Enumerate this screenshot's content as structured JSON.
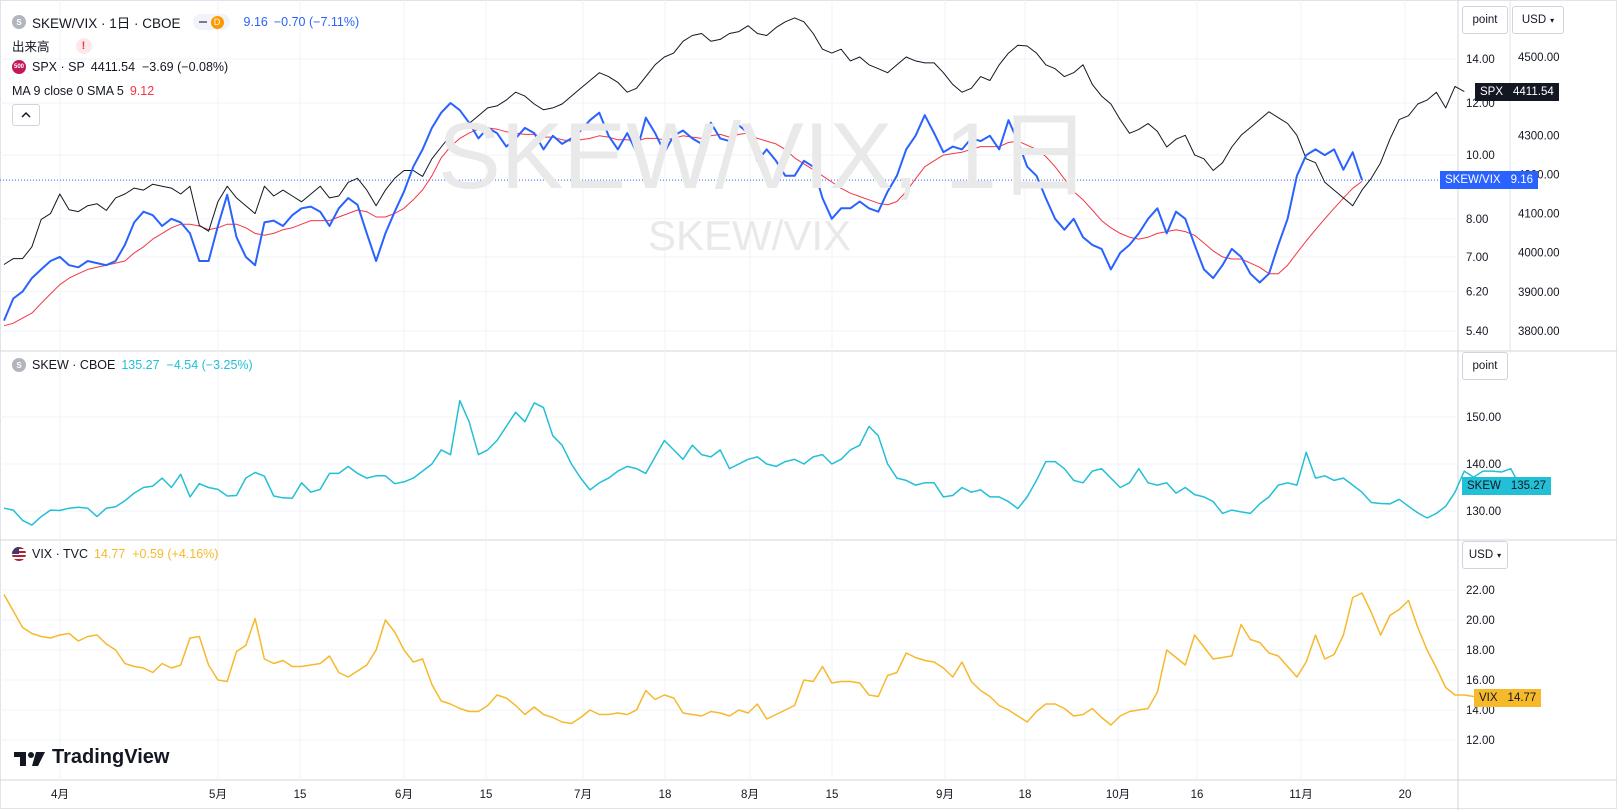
{
  "main_pane": {
    "symbol_title": "SKEW/VIX · 1日 · CBOE",
    "symbol_icon": "S",
    "delay_badge": "D",
    "last": "9.16",
    "change": "−0.70 (−7.11%)",
    "volume_label": "出来高",
    "warning": "!",
    "spx": {
      "icon": "500",
      "name": "SPX · SP",
      "values": "4411.54  −3.69 (−0.08%)"
    },
    "ma": {
      "name": "MA 9 close 0 SMA 5",
      "value": "9.12"
    },
    "collapse_icon": "chevron-up-icon",
    "watermark_big": "SKEW/VIX, 1日",
    "watermark_small": "SKEW/VIX",
    "scale_mode": "point",
    "currency": "USD"
  },
  "skew_pane": {
    "icon": "S",
    "title": "SKEW · CBOE",
    "values": "135.27  −4.54 (−3.25%)",
    "scale_mode": "point"
  },
  "vix_pane": {
    "title": "VIX · TVC",
    "values": "14.77  +0.59 (+4.16%)",
    "currency": "USD"
  },
  "branding": "TradingView",
  "colors": {
    "skew_vix": "#2962ff",
    "spx": "#131722",
    "ma": "#f23645",
    "skew": "#22c0d6",
    "vix": "#f6b92b"
  },
  "x_axis_labels": [
    "4月",
    "5月",
    "15",
    "6月",
    "15",
    "7月",
    "18",
    "8月",
    "15",
    "9月",
    "18",
    "10月",
    "16",
    "11月",
    "20"
  ],
  "chart_data": [
    {
      "type": "line",
      "title": "SKEW/VIX · 1日 · CBOE",
      "y_axis_left_ticks": [
        "14.00",
        "12.00",
        "10.00",
        "8.00",
        "7.00",
        "6.20",
        "5.40"
      ],
      "y_axis_right_ticks": [
        "4500.00",
        "4400.00",
        "4300.00",
        "4200.00",
        "4100.00",
        "4000.00",
        "3900.00",
        "3800.00"
      ],
      "y_scale": "log",
      "series": [
        {
          "name": "SKEW/VIX",
          "color": "#2962ff",
          "last_label": "9.16",
          "values": [
            5.6,
            6.05,
            6.2,
            6.5,
            6.7,
            6.9,
            7.0,
            6.8,
            6.75,
            6.9,
            6.85,
            6.8,
            6.9,
            7.3,
            7.9,
            8.2,
            8.1,
            7.8,
            8.0,
            7.9,
            7.6,
            6.9,
            6.9,
            7.8,
            8.7,
            7.5,
            7.0,
            6.8,
            7.9,
            7.95,
            7.8,
            8.1,
            8.3,
            8.35,
            8.2,
            7.8,
            8.3,
            8.6,
            8.4,
            7.6,
            6.9,
            7.6,
            8.2,
            8.8,
            9.6,
            10.2,
            11.0,
            11.6,
            12.0,
            11.7,
            11.2,
            10.6,
            11.0,
            10.8,
            10.3,
            10.6,
            11.0,
            10.8,
            10.2,
            10.7,
            10.4,
            10.6,
            10.9,
            11.3,
            11.6,
            10.7,
            10.2,
            10.8,
            10.1,
            11.4,
            10.8,
            10.1,
            10.7,
            10.9,
            10.6,
            10.4,
            11.2,
            10.6,
            10.5,
            11.1,
            10.8,
            9.8,
            10.2,
            9.8,
            9.3,
            9.3,
            9.8,
            9.6,
            8.6,
            8.0,
            8.3,
            8.3,
            8.5,
            8.3,
            8.2,
            8.8,
            9.3,
            10.2,
            10.7,
            11.5,
            10.8,
            10.1,
            10.3,
            10.2,
            10.6,
            10.5,
            10.7,
            10.2,
            11.3,
            10.5,
            9.6,
            9.3,
            8.6,
            8.0,
            7.7,
            8.0,
            7.5,
            7.3,
            7.2,
            6.7,
            7.1,
            7.3,
            7.6,
            8.0,
            8.3,
            7.6,
            8.2,
            8.0,
            7.3,
            6.7,
            6.5,
            6.8,
            7.2,
            7.0,
            6.6,
            6.4,
            6.6,
            7.3,
            8.0,
            9.3,
            10.0,
            10.2,
            10.0,
            10.2,
            9.5,
            10.1,
            9.16
          ]
        },
        {
          "name": "SPX · SP",
          "color": "#131722",
          "last_label": "4411.54",
          "y_axis": "right",
          "values": [
            3970,
            3985,
            3985,
            4015,
            4085,
            4100,
            4150,
            4110,
            4105,
            4120,
            4125,
            4108,
            4140,
            4150,
            4165,
            4160,
            4175,
            4170,
            4165,
            4150,
            4170,
            4070,
            4055,
            4130,
            4170,
            4140,
            4120,
            4100,
            4170,
            4145,
            4160,
            4145,
            4130,
            4150,
            4170,
            4140,
            4145,
            4180,
            4190,
            4160,
            4120,
            4160,
            4190,
            4210,
            4210,
            4195,
            4240,
            4270,
            4300,
            4320,
            4330,
            4350,
            4370,
            4375,
            4390,
            4410,
            4400,
            4380,
            4365,
            4370,
            4380,
            4400,
            4420,
            4440,
            4460,
            4450,
            4435,
            4410,
            4420,
            4450,
            4480,
            4500,
            4510,
            4540,
            4555,
            4560,
            4540,
            4545,
            4560,
            4565,
            4580,
            4560,
            4555,
            4575,
            4590,
            4600,
            4590,
            4560,
            4520,
            4510,
            4520,
            4490,
            4500,
            4480,
            4470,
            4460,
            4480,
            4500,
            4490,
            4485,
            4485,
            4460,
            4430,
            4410,
            4420,
            4450,
            4440,
            4480,
            4510,
            4530,
            4528,
            4510,
            4480,
            4470,
            4450,
            4460,
            4480,
            4430,
            4400,
            4380,
            4340,
            4305,
            4315,
            4330,
            4310,
            4270,
            4290,
            4300,
            4250,
            4240,
            4210,
            4230,
            4270,
            4300,
            4320,
            4340,
            4360,
            4345,
            4330,
            4300,
            4240,
            4230,
            4180,
            4160,
            4140,
            4120,
            4160,
            4190,
            4230,
            4290,
            4340,
            4350,
            4380,
            4390,
            4410,
            4370,
            4425,
            4411.54
          ]
        },
        {
          "name": "MA 9 close 0 SMA 5",
          "color": "#f23645",
          "values": [
            5.5,
            5.55,
            5.65,
            5.75,
            5.95,
            6.15,
            6.35,
            6.5,
            6.6,
            6.7,
            6.75,
            6.8,
            6.85,
            6.9,
            7.1,
            7.25,
            7.45,
            7.6,
            7.75,
            7.85,
            7.85,
            7.8,
            7.7,
            7.75,
            7.85,
            7.85,
            7.75,
            7.6,
            7.55,
            7.6,
            7.7,
            7.75,
            7.85,
            7.95,
            7.95,
            7.95,
            8.05,
            8.15,
            8.25,
            8.2,
            8.05,
            8.05,
            8.15,
            8.3,
            8.55,
            8.85,
            9.3,
            9.9,
            10.3,
            10.6,
            10.8,
            10.95,
            11.0,
            10.95,
            10.85,
            10.8,
            10.75,
            10.75,
            10.65,
            10.65,
            10.55,
            10.5,
            10.55,
            10.6,
            10.7,
            10.65,
            10.55,
            10.55,
            10.5,
            10.6,
            10.6,
            10.55,
            10.6,
            10.7,
            10.65,
            10.6,
            10.7,
            10.75,
            10.65,
            10.75,
            10.8,
            10.6,
            10.5,
            10.4,
            10.2,
            9.9,
            9.7,
            9.5,
            9.3,
            9.1,
            8.9,
            8.75,
            8.65,
            8.55,
            8.45,
            8.4,
            8.5,
            8.8,
            9.2,
            9.6,
            9.8,
            10.0,
            10.05,
            10.1,
            10.2,
            10.3,
            10.3,
            10.3,
            10.45,
            10.5,
            10.35,
            10.2,
            9.95,
            9.6,
            9.2,
            8.8,
            8.55,
            8.25,
            7.95,
            7.75,
            7.6,
            7.5,
            7.45,
            7.5,
            7.6,
            7.65,
            7.7,
            7.65,
            7.55,
            7.35,
            7.15,
            7.0,
            6.95,
            6.95,
            6.85,
            6.75,
            6.6,
            6.6,
            6.8,
            7.1,
            7.4,
            7.7,
            8.0,
            8.3,
            8.6,
            8.9,
            9.12
          ]
        }
      ]
    },
    {
      "type": "line",
      "title": "SKEW · CBOE",
      "y_axis_ticks": [
        "150.00",
        "140.00",
        "130.00"
      ],
      "series": [
        {
          "name": "SKEW",
          "color": "#22c0d6",
          "last_label": "135.27",
          "values": [
            130.6,
            130.2,
            128.0,
            127.0,
            128.8,
            130.2,
            130.1,
            130.6,
            130.8,
            130.6,
            128.8,
            130.6,
            130.9,
            132.2,
            133.8,
            135.0,
            135.3,
            137.0,
            135.0,
            137.8,
            133.0,
            135.8,
            135.0,
            134.6,
            133.2,
            133.3,
            137.0,
            138.2,
            137.4,
            133.2,
            132.8,
            132.7,
            136.0,
            134.0,
            134.6,
            138.0,
            138.0,
            139.5,
            138.0,
            137.0,
            137.5,
            137.5,
            135.8,
            136.2,
            137.0,
            138.5,
            140.0,
            143.0,
            142.0,
            153.5,
            149.0,
            142.0,
            143.0,
            145.0,
            148.0,
            151.0,
            149.0,
            153.0,
            152.0,
            146.0,
            144.0,
            140.0,
            137.0,
            134.5,
            136.0,
            137.0,
            138.5,
            139.5,
            139.0,
            138.0,
            141.5,
            145.0,
            143.0,
            141.0,
            144.0,
            142.0,
            141.5,
            143.0,
            139.0,
            140.0,
            141.0,
            141.5,
            140.0,
            139.5,
            140.5,
            141.0,
            140.0,
            141.5,
            142.0,
            140.0,
            141.0,
            143.0,
            144.0,
            148.0,
            146.0,
            140.0,
            137.0,
            136.5,
            135.5,
            136.0,
            136.0,
            133.0,
            133.3,
            135.0,
            134.0,
            134.5,
            133.0,
            133.0,
            132.0,
            130.5,
            133.0,
            136.5,
            140.5,
            140.5,
            139.0,
            136.5,
            136.0,
            138.5,
            139.0,
            137.0,
            135.0,
            136.0,
            139.0,
            136.0,
            135.5,
            136.0,
            133.8,
            135.0,
            133.5,
            133.0,
            132.0,
            129.5,
            130.2,
            129.8,
            129.5,
            131.5,
            133.0,
            135.5,
            136.0,
            135.5,
            142.5,
            137.0,
            137.5,
            136.5,
            137.0,
            135.5,
            134.0,
            131.8,
            131.6,
            131.5,
            132.5,
            131.0,
            129.6,
            128.5,
            129.5,
            131.0,
            134.0,
            138.5,
            137.2,
            138.5,
            138.5,
            138.3,
            139.0,
            135.27
          ]
        }
      ]
    },
    {
      "type": "line",
      "title": "VIX · TVC",
      "y_axis_ticks": [
        "22.00",
        "20.00",
        "18.00",
        "16.00",
        "14.00",
        "12.00"
      ],
      "series": [
        {
          "name": "VIX",
          "color": "#f6b92b",
          "last_label": "14.77",
          "values": [
            21.7,
            20.6,
            19.5,
            19.1,
            18.9,
            18.8,
            19.0,
            19.1,
            18.6,
            18.9,
            19.0,
            18.4,
            18.0,
            17.1,
            16.9,
            16.8,
            16.5,
            17.1,
            16.8,
            17.0,
            18.8,
            18.9,
            17.0,
            16.0,
            15.9,
            17.9,
            18.3,
            20.1,
            17.4,
            17.1,
            17.3,
            16.9,
            16.9,
            17.0,
            17.1,
            17.6,
            16.5,
            16.2,
            16.6,
            17.0,
            18.0,
            20.0,
            19.2,
            18.0,
            17.2,
            17.4,
            15.7,
            14.6,
            14.4,
            14.1,
            13.9,
            13.9,
            14.3,
            15.0,
            14.8,
            14.3,
            13.7,
            14.2,
            13.7,
            13.5,
            13.2,
            13.1,
            13.5,
            14.0,
            13.7,
            13.7,
            13.8,
            13.7,
            14.0,
            15.3,
            14.7,
            15.0,
            14.8,
            13.8,
            13.7,
            13.6,
            13.9,
            13.8,
            13.6,
            14.0,
            13.8,
            14.4,
            13.4,
            13.7,
            14.0,
            14.3,
            16.0,
            15.9,
            16.9,
            15.8,
            15.9,
            15.9,
            15.8,
            15.0,
            14.9,
            16.3,
            16.5,
            17.8,
            17.5,
            17.3,
            17.2,
            16.8,
            16.2,
            17.2,
            15.9,
            15.3,
            14.9,
            14.3,
            14.0,
            13.6,
            13.2,
            13.9,
            14.4,
            14.4,
            14.1,
            13.6,
            13.7,
            14.1,
            13.5,
            13.0,
            13.6,
            13.9,
            14.0,
            14.1,
            15.2,
            18.0,
            17.5,
            17.0,
            19.0,
            18.2,
            17.4,
            17.5,
            17.6,
            19.7,
            18.7,
            18.5,
            17.8,
            17.6,
            16.9,
            16.2,
            17.2,
            19.0,
            17.4,
            17.7,
            19.0,
            21.5,
            21.8,
            20.5,
            19.0,
            20.3,
            20.7,
            21.3,
            19.5,
            18.0,
            16.8,
            15.5,
            15.0,
            15.0,
            14.9,
            14.8,
            15.2,
            14.3,
            14.77
          ]
        }
      ]
    }
  ]
}
